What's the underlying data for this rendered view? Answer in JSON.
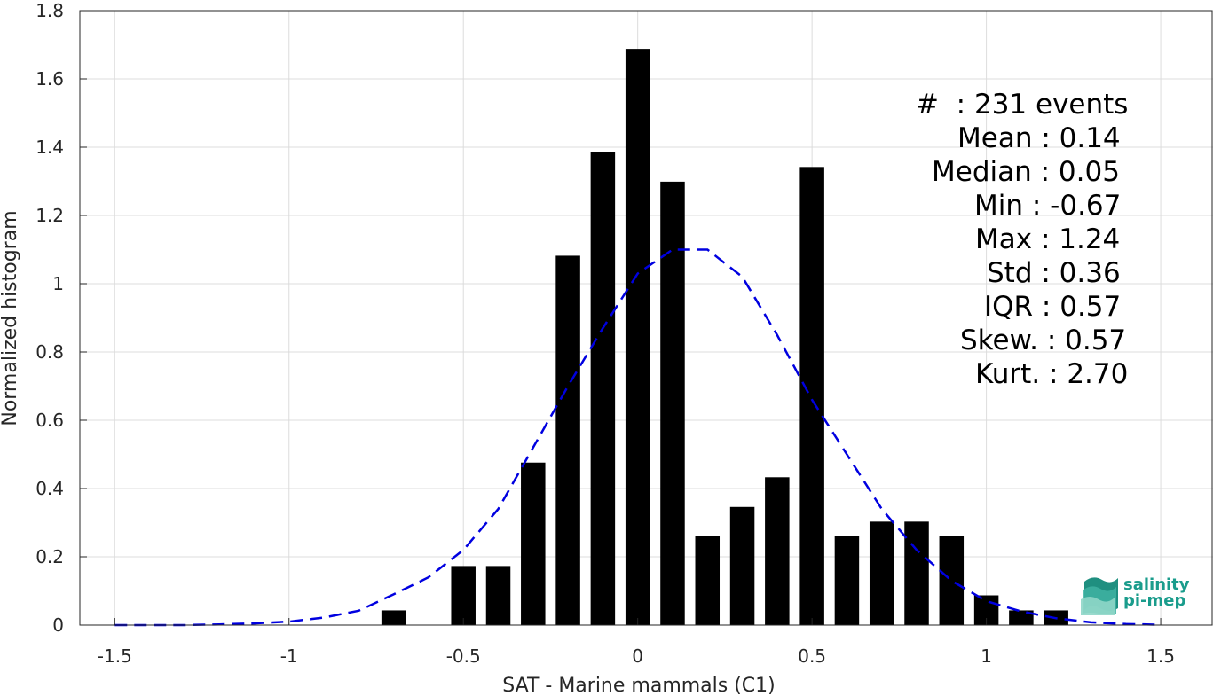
{
  "chart_data": {
    "type": "bar",
    "xlabel": "SAT - Marine mammals (C1)",
    "ylabel": "Normalized histogram",
    "xlim": [
      -1.5,
      1.5
    ],
    "ylim": [
      0,
      1.8
    ],
    "xticks": [
      "-1.5",
      "-1",
      "-0.5",
      "0",
      "0.5",
      "1",
      "1.5"
    ],
    "yticks": [
      "0",
      "0.2",
      "0.4",
      "0.6",
      "0.8",
      "1",
      "1.2",
      "1.4",
      "1.6",
      "1.8"
    ],
    "grid": true,
    "bar_width": 0.07,
    "bar_color": "#000000",
    "bars": [
      {
        "x": -0.7,
        "y": 0.043
      },
      {
        "x": -0.5,
        "y": 0.173
      },
      {
        "x": -0.4,
        "y": 0.173
      },
      {
        "x": -0.3,
        "y": 0.476
      },
      {
        "x": -0.2,
        "y": 1.082
      },
      {
        "x": -0.1,
        "y": 1.385
      },
      {
        "x": 0.0,
        "y": 1.688
      },
      {
        "x": 0.1,
        "y": 1.299
      },
      {
        "x": 0.2,
        "y": 0.26
      },
      {
        "x": 0.3,
        "y": 0.346
      },
      {
        "x": 0.4,
        "y": 0.433
      },
      {
        "x": 0.5,
        "y": 1.342
      },
      {
        "x": 0.6,
        "y": 0.26
      },
      {
        "x": 0.7,
        "y": 0.303
      },
      {
        "x": 0.8,
        "y": 0.303
      },
      {
        "x": 0.9,
        "y": 0.26
      },
      {
        "x": 1.0,
        "y": 0.087
      },
      {
        "x": 1.1,
        "y": 0.043
      },
      {
        "x": 1.2,
        "y": 0.043
      }
    ],
    "fit_curve": {
      "style": "dashed",
      "color": "#0000e0",
      "x": [
        -1.5,
        -1.4,
        -1.3,
        -1.2,
        -1.1,
        -1.0,
        -0.9,
        -0.8,
        -0.7,
        -0.6,
        -0.5,
        -0.4,
        -0.3,
        -0.2,
        -0.1,
        0.0,
        0.1,
        0.2,
        0.3,
        0.4,
        0.5,
        0.6,
        0.7,
        0.8,
        0.9,
        1.0,
        1.1,
        1.2,
        1.3,
        1.4,
        1.5
      ],
      "y": [
        0.0,
        0.0,
        0.0,
        0.002,
        0.005,
        0.01,
        0.022,
        0.042,
        0.09,
        0.14,
        0.22,
        0.34,
        0.52,
        0.7,
        0.87,
        1.03,
        1.1,
        1.1,
        1.02,
        0.85,
        0.66,
        0.5,
        0.34,
        0.22,
        0.13,
        0.07,
        0.04,
        0.02,
        0.008,
        0.003,
        0.001
      ]
    }
  },
  "stats": [
    {
      "key": "#",
      "text": "#  : 231 events"
    },
    {
      "key": "mean",
      "text": "Mean : 0.14"
    },
    {
      "key": "median",
      "text": "Median : 0.05"
    },
    {
      "key": "min",
      "text": "Min : -0.67"
    },
    {
      "key": "max",
      "text": "Max : 1.24"
    },
    {
      "key": "std",
      "text": "Std : 0.36"
    },
    {
      "key": "iqr",
      "text": "IQR : 0.57"
    },
    {
      "key": "skew",
      "text": "Skew. : 0.57"
    },
    {
      "key": "kurt",
      "text": "Kurt. : 2.70"
    }
  ],
  "logo": {
    "line1": "salinity",
    "line2": "pi-mep",
    "color": "#1a9c8c"
  }
}
